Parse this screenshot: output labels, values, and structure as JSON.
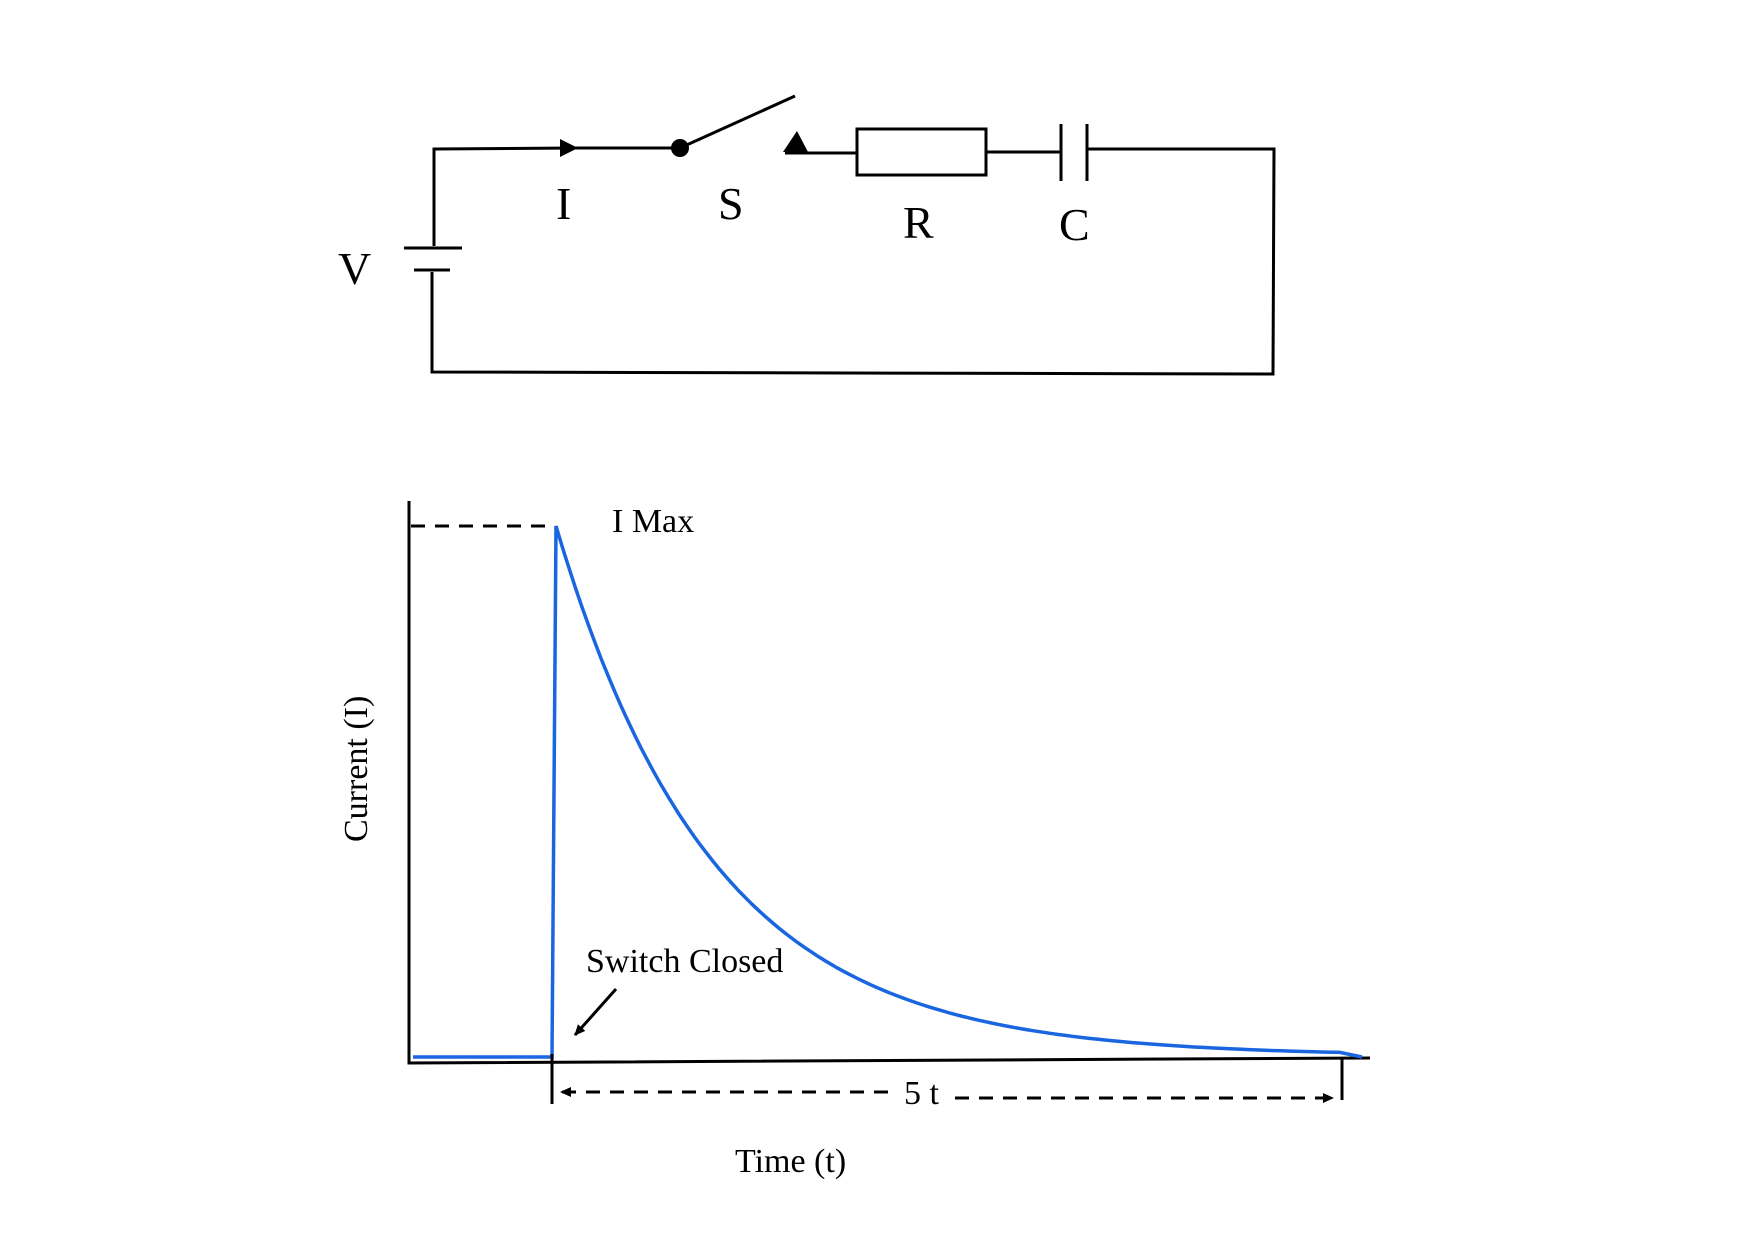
{
  "circuit": {
    "voltage_label": "V",
    "current_label": "I",
    "switch_label": "S",
    "resistor_label": "R",
    "capacitor_label": "C"
  },
  "graph": {
    "imax_label": "I Max",
    "switch_annotation": "Switch Closed",
    "duration_label": "5 t",
    "xlabel": "Time (t)",
    "ylabel": "Current (I)",
    "curve_color": "#1a66e0"
  }
}
